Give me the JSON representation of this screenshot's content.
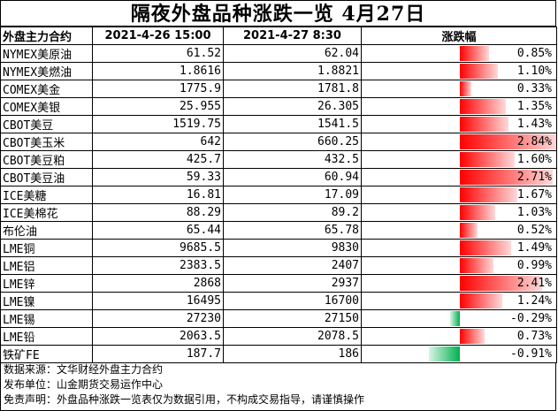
{
  "title": "隔夜外盘品种涨跌一览 4月27日",
  "header": {
    "name": "外盘主力合约",
    "date1": "2021-4-26 15:00",
    "date2": "2021-4-27 8:30",
    "change": "涨跌幅"
  },
  "colors": {
    "up": "#ff0000",
    "down": "#00b050"
  },
  "rows": [
    {
      "name": "NYMEX美原油",
      "prev": "61.52",
      "curr": "62.04",
      "change": "0.85%",
      "pct": 0.85
    },
    {
      "name": "NYMEX美燃油",
      "prev": "1.8616",
      "curr": "1.8821",
      "change": "1.10%",
      "pct": 1.1
    },
    {
      "name": "COMEX美金",
      "prev": "1775.9",
      "curr": "1781.8",
      "change": "0.33%",
      "pct": 0.33
    },
    {
      "name": "COMEX美银",
      "prev": "25.955",
      "curr": "26.305",
      "change": "1.35%",
      "pct": 1.35
    },
    {
      "name": "CBOT美豆",
      "prev": "1519.75",
      "curr": "1541.5",
      "change": "1.43%",
      "pct": 1.43
    },
    {
      "name": "CBOT美玉米",
      "prev": "642",
      "curr": "660.25",
      "change": "2.84%",
      "pct": 2.84
    },
    {
      "name": "CBOT美豆粕",
      "prev": "425.7",
      "curr": "432.5",
      "change": "1.60%",
      "pct": 1.6
    },
    {
      "name": "CBOT美豆油",
      "prev": "59.33",
      "curr": "60.94",
      "change": "2.71%",
      "pct": 2.71
    },
    {
      "name": "ICE美糖",
      "prev": "16.81",
      "curr": "17.09",
      "change": "1.67%",
      "pct": 1.67
    },
    {
      "name": "ICE美棉花",
      "prev": "88.29",
      "curr": "89.2",
      "change": "1.03%",
      "pct": 1.03
    },
    {
      "name": "布伦油",
      "prev": "65.44",
      "curr": "65.78",
      "change": "0.52%",
      "pct": 0.52
    },
    {
      "name": "LME铜",
      "prev": "9685.5",
      "curr": "9830",
      "change": "1.49%",
      "pct": 1.49
    },
    {
      "name": "LME铝",
      "prev": "2383.5",
      "curr": "2407",
      "change": "0.99%",
      "pct": 0.99
    },
    {
      "name": "LME锌",
      "prev": "2868",
      "curr": "2937",
      "change": "2.41%",
      "pct": 2.41
    },
    {
      "name": "LME镍",
      "prev": "16495",
      "curr": "16700",
      "change": "1.24%",
      "pct": 1.24
    },
    {
      "name": "LME锡",
      "prev": "27230",
      "curr": "27150",
      "change": "-0.29%",
      "pct": -0.29
    },
    {
      "name": "LME铅",
      "prev": "2063.5",
      "curr": "2078.5",
      "change": "0.73%",
      "pct": 0.73
    },
    {
      "name": "铁矿FE",
      "prev": "187.7",
      "curr": "186",
      "change": "-0.91%",
      "pct": -0.91
    }
  ],
  "notes": [
    "数据来源：文华财经外盘主力合约",
    "发布单位：山金期货交易运作中心",
    "免责声明：外盘品种涨跌一览表仅为数据引用，不构成交易指导，请谨慎操作"
  ]
}
